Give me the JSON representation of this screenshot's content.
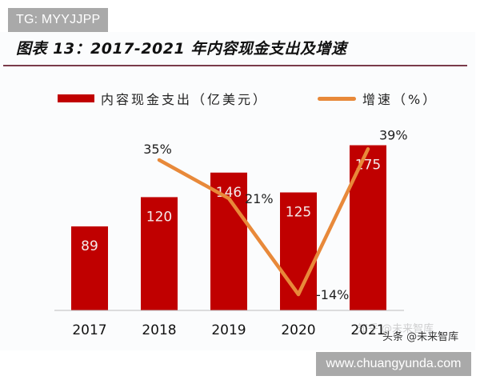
{
  "badges": {
    "top": "TG: MYYJJPP",
    "bottom": "www.chuangyunda.com"
  },
  "title": "图表 13：2017-2021 年内容现金支出及增速",
  "legend": {
    "bar_label": "内容现金支出（亿美元）",
    "line_label": "增速（%）"
  },
  "watermark": {
    "primary": "头条 @未来智库",
    "ghost": "知乎 @未来智库"
  },
  "colors": {
    "bar": "#c00000",
    "line": "#e8893a",
    "title_rule": "#7a3b4a"
  },
  "chart_data": {
    "type": "bar",
    "title": "图表 13：2017-2021 年内容现金支出及增速",
    "xlabel": "",
    "ylabel": "",
    "categories": [
      "2017",
      "2018",
      "2019",
      "2020",
      "2021"
    ],
    "series": [
      {
        "name": "内容现金支出（亿美元）",
        "type": "bar",
        "values": [
          89,
          120,
          146,
          125,
          175
        ],
        "labels": [
          "89",
          "120",
          "146",
          "125",
          "175"
        ]
      },
      {
        "name": "增速（%）",
        "type": "line",
        "values": [
          null,
          35,
          21,
          -14,
          39
        ],
        "labels": [
          "",
          "35%",
          "21%",
          "-14%",
          "39%"
        ]
      }
    ],
    "legend_position": "top",
    "grid": false,
    "ylim_bar": [
      0,
      200
    ],
    "ylim_line": [
      -20,
      45
    ]
  }
}
